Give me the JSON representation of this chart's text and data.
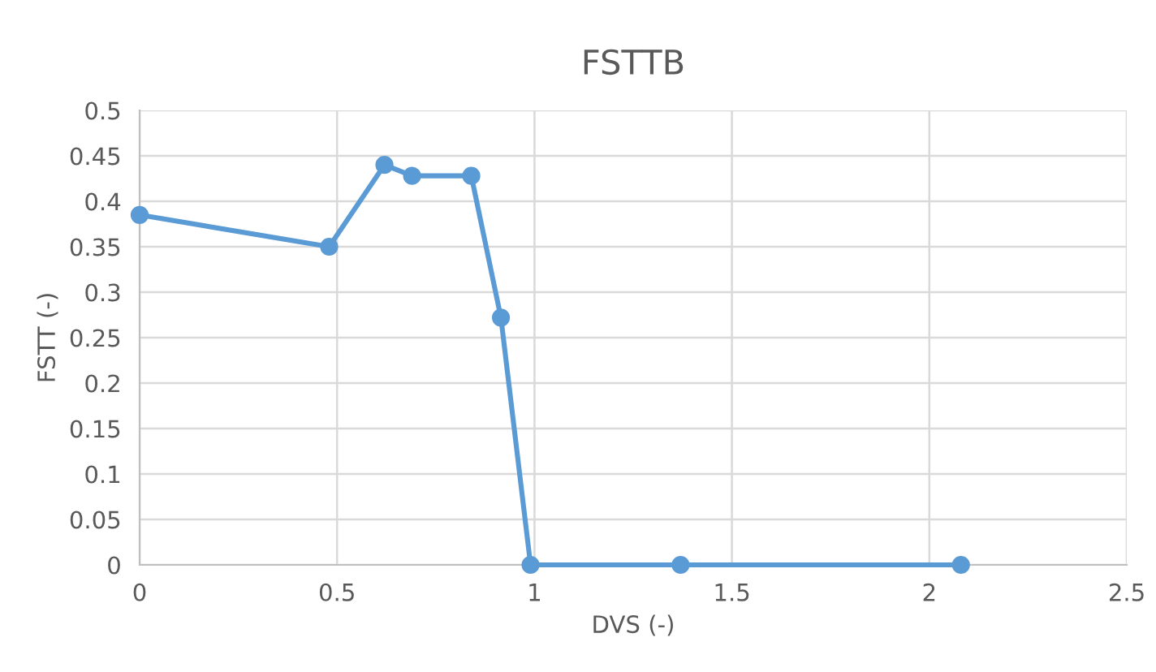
{
  "chart_data": {
    "type": "line",
    "title": "FSTTB",
    "xlabel": "DVS (-)",
    "ylabel": "FSTT (-)",
    "x": [
      0,
      0.48,
      0.62,
      0.69,
      0.84,
      0.915,
      0.99,
      1.37,
      2.08
    ],
    "series": [
      {
        "color": "#5b9bd5",
        "values": [
          0.385,
          0.35,
          0.44,
          0.428,
          0.428,
          0.272,
          0,
          0,
          0
        ]
      }
    ],
    "xlim": [
      0,
      2.5
    ],
    "xticks": [
      0,
      0.5,
      1,
      1.5,
      2,
      2.5
    ],
    "ylim": [
      0,
      0.5
    ],
    "yticks": [
      0,
      0.05,
      0.1,
      0.15,
      0.2,
      0.25,
      0.3,
      0.35,
      0.4,
      0.45,
      0.5
    ],
    "grid": true,
    "marker": "circle",
    "line_style": "solid"
  }
}
